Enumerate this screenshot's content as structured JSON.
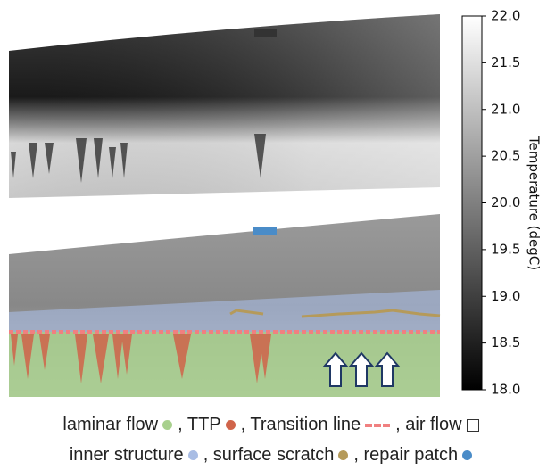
{
  "colorbar": {
    "label": "Temperature (degC)",
    "lim": [
      18,
      22
    ],
    "ticks": [
      {
        "value": 22,
        "label": "22.0"
      },
      {
        "value": 21.5,
        "label": "21.5"
      },
      {
        "value": 21,
        "label": "21.0"
      },
      {
        "value": 20.5,
        "label": "20.5"
      },
      {
        "value": 20,
        "label": "20.0"
      },
      {
        "value": 19.5,
        "label": "19.5"
      },
      {
        "value": 19,
        "label": "19.0"
      },
      {
        "value": 18.5,
        "label": "18.5"
      },
      {
        "value": 18,
        "label": "18.0"
      }
    ]
  },
  "legend": {
    "rows": [
      [
        {
          "label": "laminar flow",
          "color": "#a8d08d",
          "marker": "circle"
        },
        {
          "label": ", TTP",
          "color": "#d0644a",
          "marker": "circle"
        },
        {
          "label": ", Transition line",
          "color": "#f08080",
          "marker": "dashes"
        },
        {
          "label": ", air flow",
          "color": "#333333",
          "marker": "square"
        }
      ],
      [
        {
          "label": "inner structure",
          "color": "#a9bde4",
          "marker": "circle"
        },
        {
          "label": ", surface scratch",
          "color": "#b59a5a",
          "marker": "circle"
        },
        {
          "label": ", repair patch",
          "color": "#4a8cc8",
          "marker": "circle"
        }
      ]
    ]
  }
}
